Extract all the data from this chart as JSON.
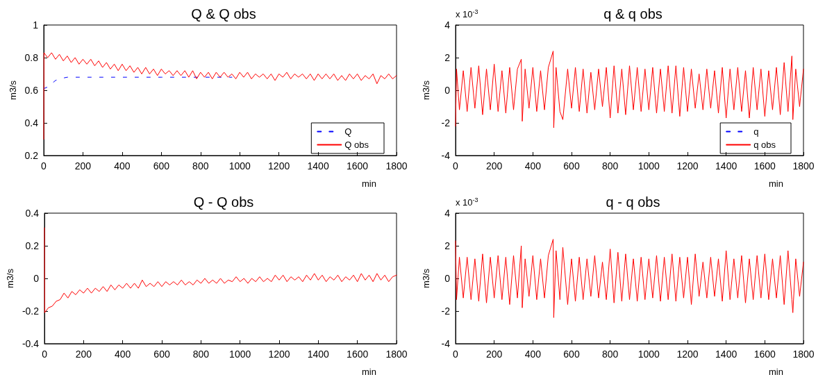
{
  "chart_data": [
    {
      "type": "line",
      "title": "Q & Q obs",
      "xlabel": "min",
      "ylabel": "m3/s",
      "xlim": [
        0,
        1800
      ],
      "xticks": [
        0,
        200,
        400,
        600,
        800,
        1000,
        1200,
        1400,
        1600,
        1800
      ],
      "ylim": [
        0.2,
        1
      ],
      "yticks": [
        0.2,
        0.4,
        0.6,
        0.8,
        1
      ],
      "grid": false,
      "legend": "bottom right",
      "series": [
        {
          "name": "Q",
          "color": "#0000ff",
          "line_style": "dashed",
          "x": [
            0,
            20,
            40,
            60,
            80,
            120,
            200,
            400,
            600,
            800,
            960
          ],
          "values": [
            0.61,
            0.62,
            0.64,
            0.66,
            0.67,
            0.68,
            0.68,
            0.68,
            0.68,
            0.68,
            0.68
          ]
        },
        {
          "name": "Q obs",
          "color": "#ff0000",
          "line_style": "solid",
          "x": [
            0,
            1,
            20,
            40,
            60,
            80,
            100,
            120,
            140,
            160,
            180,
            200,
            220,
            240,
            260,
            280,
            300,
            320,
            340,
            360,
            380,
            400,
            420,
            440,
            460,
            480,
            500,
            520,
            540,
            560,
            580,
            600,
            620,
            640,
            660,
            680,
            700,
            720,
            740,
            760,
            780,
            800,
            820,
            840,
            860,
            880,
            900,
            920,
            940,
            960,
            980,
            1000,
            1020,
            1040,
            1060,
            1080,
            1100,
            1120,
            1140,
            1160,
            1180,
            1200,
            1220,
            1240,
            1260,
            1280,
            1300,
            1320,
            1340,
            1360,
            1380,
            1400,
            1420,
            1440,
            1460,
            1480,
            1500,
            1520,
            1540,
            1560,
            1580,
            1600,
            1620,
            1640,
            1660,
            1680,
            1700,
            1720,
            1740,
            1760,
            1780,
            1800
          ],
          "values": [
            0.3,
            0.83,
            0.8,
            0.83,
            0.79,
            0.82,
            0.78,
            0.81,
            0.77,
            0.8,
            0.76,
            0.79,
            0.76,
            0.79,
            0.75,
            0.78,
            0.74,
            0.77,
            0.73,
            0.76,
            0.72,
            0.76,
            0.72,
            0.75,
            0.71,
            0.74,
            0.7,
            0.74,
            0.7,
            0.73,
            0.69,
            0.73,
            0.7,
            0.72,
            0.69,
            0.72,
            0.69,
            0.72,
            0.68,
            0.72,
            0.67,
            0.71,
            0.68,
            0.71,
            0.67,
            0.71,
            0.68,
            0.71,
            0.68,
            0.7,
            0.67,
            0.71,
            0.68,
            0.71,
            0.67,
            0.7,
            0.68,
            0.7,
            0.67,
            0.7,
            0.66,
            0.7,
            0.68,
            0.71,
            0.67,
            0.7,
            0.68,
            0.7,
            0.67,
            0.7,
            0.66,
            0.7,
            0.67,
            0.7,
            0.67,
            0.7,
            0.66,
            0.69,
            0.66,
            0.7,
            0.67,
            0.7,
            0.66,
            0.69,
            0.67,
            0.7,
            0.64,
            0.69,
            0.67,
            0.7,
            0.67,
            0.69
          ]
        }
      ]
    },
    {
      "type": "line",
      "title": "q & q obs",
      "xlabel": "min",
      "ylabel": "m3/s",
      "annotations": [
        "x 10$^{-3}$"
      ],
      "xlim": [
        0,
        1800
      ],
      "xticks": [
        0,
        200,
        400,
        600,
        800,
        1000,
        1200,
        1400,
        1600,
        1800
      ],
      "ylim": [
        -4,
        4
      ],
      "yticks": [
        -4,
        -2,
        0,
        2,
        4
      ],
      "grid": false,
      "legend": "bottom right",
      "series": [
        {
          "name": "q",
          "color": "#0000ff",
          "line_style": "dashed"
        },
        {
          "name": "q obs",
          "color": "#ff0000",
          "line_style": "solid",
          "x": [
            0,
            5,
            20,
            40,
            60,
            80,
            100,
            120,
            140,
            160,
            180,
            200,
            220,
            240,
            260,
            280,
            300,
            320,
            340,
            345,
            360,
            380,
            400,
            420,
            440,
            460,
            480,
            505,
            508,
            520,
            540,
            555,
            580,
            600,
            620,
            640,
            660,
            680,
            700,
            720,
            740,
            760,
            780,
            800,
            820,
            840,
            860,
            880,
            900,
            920,
            940,
            960,
            980,
            1000,
            1020,
            1040,
            1060,
            1080,
            1100,
            1120,
            1140,
            1160,
            1180,
            1200,
            1220,
            1240,
            1260,
            1280,
            1300,
            1320,
            1340,
            1360,
            1380,
            1400,
            1420,
            1440,
            1460,
            1480,
            1500,
            1520,
            1540,
            1560,
            1580,
            1600,
            1620,
            1640,
            1660,
            1680,
            1700,
            1720,
            1740,
            1745,
            1760,
            1780,
            1800
          ],
          "values": [
            -2.2,
            1.3,
            -1.2,
            1.2,
            -1.3,
            1.4,
            -1.1,
            1.5,
            -1.5,
            1.3,
            -1.2,
            1.6,
            -1.3,
            1.2,
            -1.4,
            1.4,
            -1.2,
            1.3,
            1.9,
            -1.9,
            1.3,
            -1.1,
            1.4,
            -1.3,
            1.2,
            -1.2,
            1.4,
            2.4,
            -2.3,
            1.4,
            -1.3,
            -1.8,
            1.3,
            -1.1,
            1.4,
            -1.3,
            1.3,
            -1.4,
            1.1,
            -1.2,
            1.3,
            -1.0,
            1.4,
            -1.7,
            1.5,
            -1.4,
            1.3,
            -1.5,
            1.5,
            -1.2,
            1.4,
            -1.3,
            1.3,
            -1.2,
            1.4,
            -1.4,
            1.3,
            -1.3,
            1.5,
            -1.4,
            1.5,
            -1.6,
            1.4,
            -1.3,
            1.3,
            -1.1,
            1.0,
            -1.2,
            1.3,
            -1.1,
            1.2,
            -1.4,
            1.4,
            -1.7,
            1.3,
            -1.2,
            1.4,
            -1.3,
            1.2,
            -1.7,
            1.4,
            -1.2,
            1.3,
            -1.6,
            1.2,
            -1.2,
            1.4,
            -1.5,
            1.7,
            -1.3,
            2.1,
            -1.8,
            1.3,
            -1.0,
            1.3
          ]
        }
      ]
    },
    {
      "type": "line",
      "title": "Q - Q obs",
      "xlabel": "min",
      "ylabel": "m3/s",
      "xlim": [
        0,
        1800
      ],
      "xticks": [
        0,
        200,
        400,
        600,
        800,
        1000,
        1200,
        1400,
        1600,
        1800
      ],
      "ylim": [
        -0.4,
        0.4
      ],
      "yticks": [
        -0.4,
        -0.2,
        0,
        0.2,
        0.4
      ],
      "grid": false,
      "series": [
        {
          "color": "#ff0000",
          "line_style": "solid",
          "x": [
            0,
            1,
            20,
            40,
            60,
            80,
            100,
            120,
            140,
            160,
            180,
            200,
            220,
            240,
            260,
            280,
            300,
            320,
            340,
            360,
            380,
            400,
            420,
            440,
            460,
            480,
            500,
            520,
            540,
            560,
            580,
            600,
            620,
            640,
            660,
            680,
            700,
            720,
            740,
            760,
            780,
            800,
            820,
            840,
            860,
            880,
            900,
            920,
            940,
            960,
            980,
            1000,
            1020,
            1040,
            1060,
            1080,
            1100,
            1120,
            1140,
            1160,
            1180,
            1200,
            1220,
            1240,
            1260,
            1280,
            1300,
            1320,
            1340,
            1360,
            1380,
            1400,
            1420,
            1440,
            1460,
            1480,
            1500,
            1520,
            1540,
            1560,
            1580,
            1600,
            1620,
            1640,
            1660,
            1680,
            1700,
            1720,
            1740,
            1760,
            1780,
            1800
          ],
          "values": [
            0.31,
            -0.21,
            -0.18,
            -0.17,
            -0.14,
            -0.13,
            -0.09,
            -0.12,
            -0.08,
            -0.1,
            -0.07,
            -0.09,
            -0.06,
            -0.09,
            -0.06,
            -0.08,
            -0.05,
            -0.08,
            -0.04,
            -0.07,
            -0.04,
            -0.06,
            -0.03,
            -0.06,
            -0.03,
            -0.06,
            -0.01,
            -0.05,
            -0.03,
            -0.05,
            -0.02,
            -0.05,
            -0.02,
            -0.04,
            -0.02,
            -0.04,
            -0.01,
            -0.04,
            -0.02,
            -0.04,
            -0.01,
            -0.03,
            0.0,
            -0.03,
            -0.01,
            -0.03,
            0.0,
            -0.03,
            -0.01,
            -0.02,
            0.01,
            -0.02,
            0.0,
            -0.03,
            0.0,
            -0.02,
            0.01,
            -0.02,
            0.0,
            -0.02,
            0.02,
            -0.01,
            0.02,
            -0.02,
            0.01,
            -0.01,
            0.01,
            -0.02,
            0.02,
            -0.01,
            0.03,
            -0.01,
            0.02,
            -0.02,
            0.01,
            -0.01,
            0.02,
            -0.02,
            0.01,
            -0.01,
            0.02,
            -0.02,
            0.03,
            -0.01,
            0.02,
            -0.02,
            0.03,
            -0.01,
            0.02,
            -0.02,
            0.01,
            0.02
          ]
        }
      ]
    },
    {
      "type": "line",
      "title": "q - q obs",
      "xlabel": "min",
      "ylabel": "m3/s",
      "annotations": [
        "x 10$^{-3}$"
      ],
      "xlim": [
        0,
        1800
      ],
      "xticks": [
        0,
        200,
        400,
        600,
        800,
        1000,
        1200,
        1400,
        1600,
        1800
      ],
      "ylim": [
        -4,
        4
      ],
      "yticks": [
        -4,
        -2,
        0,
        2,
        4
      ],
      "grid": false,
      "series": [
        {
          "color": "#ff0000",
          "line_style": "solid",
          "x": [
            0,
            5,
            20,
            40,
            60,
            80,
            100,
            120,
            140,
            160,
            180,
            200,
            220,
            240,
            260,
            280,
            300,
            320,
            340,
            345,
            360,
            380,
            400,
            420,
            440,
            460,
            480,
            505,
            508,
            520,
            540,
            555,
            580,
            600,
            620,
            640,
            660,
            680,
            700,
            720,
            740,
            760,
            780,
            800,
            820,
            840,
            860,
            880,
            900,
            920,
            940,
            960,
            980,
            1000,
            1020,
            1040,
            1060,
            1080,
            1100,
            1120,
            1140,
            1160,
            1180,
            1200,
            1220,
            1240,
            1260,
            1280,
            1300,
            1320,
            1340,
            1360,
            1380,
            1400,
            1420,
            1440,
            1460,
            1480,
            1500,
            1520,
            1540,
            1560,
            1580,
            1600,
            1620,
            1640,
            1660,
            1680,
            1700,
            1720,
            1740,
            1745,
            1760,
            1780,
            1800
          ],
          "values": [
            2.3,
            -1.3,
            1.3,
            -1.2,
            1.3,
            -1.3,
            1.2,
            -1.4,
            1.5,
            -1.5,
            1.3,
            -1.2,
            1.4,
            -1.3,
            1.3,
            -1.6,
            1.4,
            -1.2,
            2.0,
            -1.8,
            1.2,
            -1.1,
            1.4,
            -1.3,
            1.2,
            -1.2,
            1.4,
            2.4,
            -2.4,
            1.7,
            -1.3,
            1.9,
            -1.6,
            1.2,
            -1.4,
            1.3,
            -1.3,
            1.2,
            -1.1,
            1.4,
            -1.2,
            1.0,
            -1.3,
            1.8,
            -1.5,
            1.6,
            -1.4,
            1.5,
            -1.3,
            1.2,
            -1.4,
            1.3,
            -1.3,
            1.2,
            -1.2,
            1.4,
            -1.4,
            1.3,
            -1.3,
            1.5,
            -1.4,
            1.3,
            -1.2,
            1.3,
            -1.6,
            1.5,
            -1.1,
            1.0,
            -1.2,
            1.3,
            -1.1,
            1.2,
            -1.4,
            1.7,
            -1.3,
            1.2,
            -1.2,
            1.4,
            -1.5,
            1.2,
            -1.3,
            1.4,
            -1.2,
            1.5,
            -1.3,
            1.2,
            -1.2,
            1.4,
            -1.6,
            1.7,
            -1.3,
            -2.1,
            1.2,
            -1.1,
            1.0
          ]
        }
      ]
    }
  ]
}
